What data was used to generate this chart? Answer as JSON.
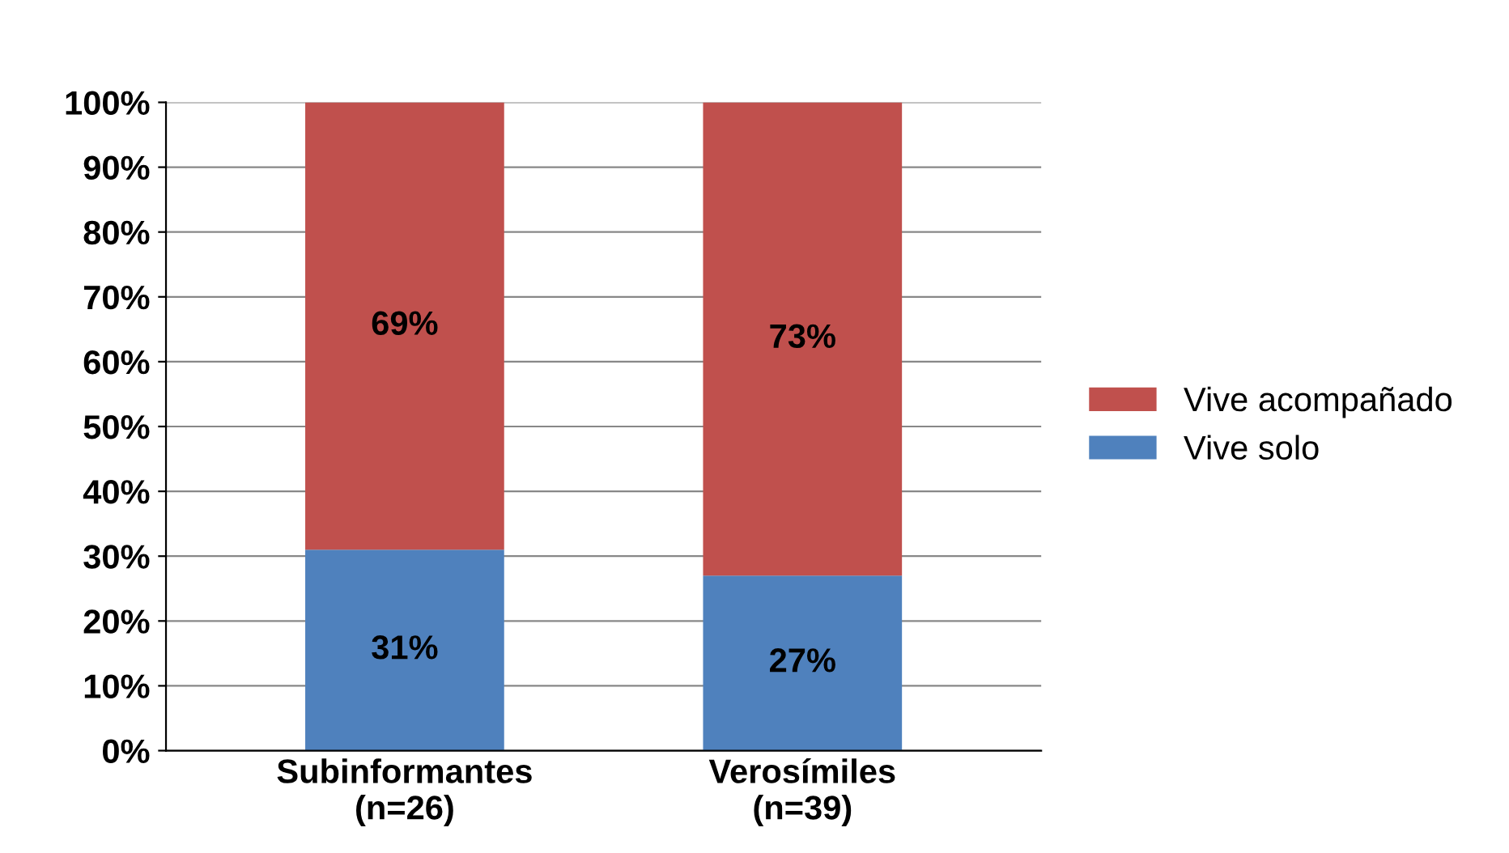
{
  "chart_data": {
    "type": "bar",
    "stacked": true,
    "categories": [
      "Subinformantes\n(n=26)",
      "Verosímiles\n(n=39)"
    ],
    "series": [
      {
        "name": "Vive solo",
        "color": "#4f81bd",
        "values": [
          31,
          27
        ],
        "value_labels": [
          "31%",
          "27%"
        ]
      },
      {
        "name": "Vive acompañado",
        "color": "#c0504d",
        "values": [
          69,
          73
        ],
        "value_labels": [
          "69%",
          "73%"
        ]
      }
    ],
    "ylim": [
      0,
      100
    ],
    "yticks": [
      {
        "value": 0,
        "label": "0%"
      },
      {
        "value": 10,
        "label": "10%"
      },
      {
        "value": 20,
        "label": "20%"
      },
      {
        "value": 30,
        "label": "30%"
      },
      {
        "value": 40,
        "label": "40%"
      },
      {
        "value": 50,
        "label": "50%"
      },
      {
        "value": 60,
        "label": "60%"
      },
      {
        "value": 70,
        "label": "70%"
      },
      {
        "value": 80,
        "label": "80%"
      },
      {
        "value": 90,
        "label": "90%"
      },
      {
        "value": 100,
        "label": "100%"
      }
    ],
    "grid": "y",
    "legend": "right"
  }
}
